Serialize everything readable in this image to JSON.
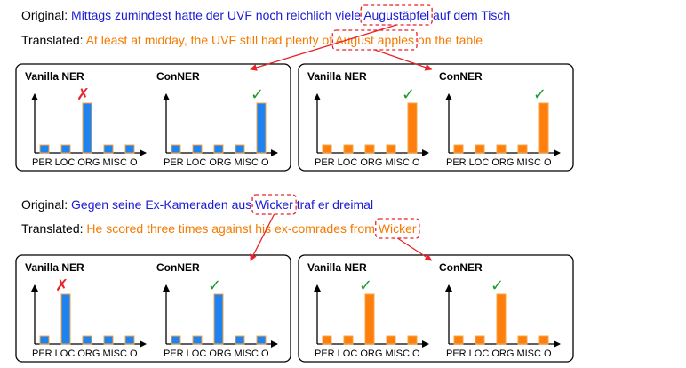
{
  "colors": {
    "original_text": "#1b1bd6",
    "translated_text": "#f47a00",
    "original_bar": "#1e82f0",
    "translated_bar": "#ff7f0e",
    "bar_outline": "#f4a640",
    "arrow": "#e8232a",
    "check": "#1a9c2a",
    "cross": "#e8232a"
  },
  "chart_data": [
    {
      "example": 1,
      "original": {
        "label": "Original:",
        "before": "Mittags zumindest hatte der UVF noch reichlich viele ",
        "entity": "Augustäpfel",
        "after": " auf dem Tisch"
      },
      "translated": {
        "label": "Translated:",
        "before": "At least at midday, the UVF still had plenty of ",
        "entity": "August apples",
        "after": " on the table"
      },
      "panels": [
        {
          "language": "original",
          "charts": [
            {
              "type": "bar",
              "title": "Vanilla NER",
              "categories": [
                "PER",
                "LOC",
                "ORG",
                "MISC",
                "O"
              ],
              "values": [
                0.12,
                0.12,
                0.75,
                0.12,
                0.12
              ],
              "mark": "cross"
            },
            {
              "type": "bar",
              "title": "ConNER",
              "categories": [
                "PER",
                "LOC",
                "ORG",
                "MISC",
                "O"
              ],
              "values": [
                0.12,
                0.12,
                0.12,
                0.12,
                0.75
              ],
              "mark": "check"
            }
          ]
        },
        {
          "language": "translated",
          "charts": [
            {
              "type": "bar",
              "title": "Vanilla NER",
              "categories": [
                "PER",
                "LOC",
                "ORG",
                "MISC",
                "O"
              ],
              "values": [
                0.12,
                0.12,
                0.12,
                0.12,
                0.75
              ],
              "mark": "check"
            },
            {
              "type": "bar",
              "title": "ConNER",
              "categories": [
                "PER",
                "LOC",
                "ORG",
                "MISC",
                "O"
              ],
              "values": [
                0.12,
                0.12,
                0.12,
                0.12,
                0.75
              ],
              "mark": "check"
            }
          ]
        }
      ]
    },
    {
      "example": 2,
      "original": {
        "label": "Original:",
        "before": "Gegen seine Ex-Kameraden aus ",
        "entity": "Wicker",
        "after": " traf er dreimal"
      },
      "translated": {
        "label": "Translated:",
        "before": "He scored three times against his ex-comrades from ",
        "entity": "Wicker",
        "after": ""
      },
      "panels": [
        {
          "language": "original",
          "charts": [
            {
              "type": "bar",
              "title": "Vanilla NER",
              "categories": [
                "PER",
                "LOC",
                "ORG",
                "MISC",
                "O"
              ],
              "values": [
                0.12,
                0.75,
                0.12,
                0.12,
                0.12
              ],
              "mark": "cross"
            },
            {
              "type": "bar",
              "title": "ConNER",
              "categories": [
                "PER",
                "LOC",
                "ORG",
                "MISC",
                "O"
              ],
              "values": [
                0.12,
                0.12,
                0.75,
                0.12,
                0.12
              ],
              "mark": "check"
            }
          ]
        },
        {
          "language": "translated",
          "charts": [
            {
              "type": "bar",
              "title": "Vanilla NER",
              "categories": [
                "PER",
                "LOC",
                "ORG",
                "MISC",
                "O"
              ],
              "values": [
                0.12,
                0.12,
                0.75,
                0.12,
                0.12
              ],
              "mark": "check"
            },
            {
              "type": "bar",
              "title": "ConNER",
              "categories": [
                "PER",
                "LOC",
                "ORG",
                "MISC",
                "O"
              ],
              "values": [
                0.12,
                0.12,
                0.75,
                0.12,
                0.12
              ],
              "mark": "check"
            }
          ]
        }
      ]
    }
  ]
}
